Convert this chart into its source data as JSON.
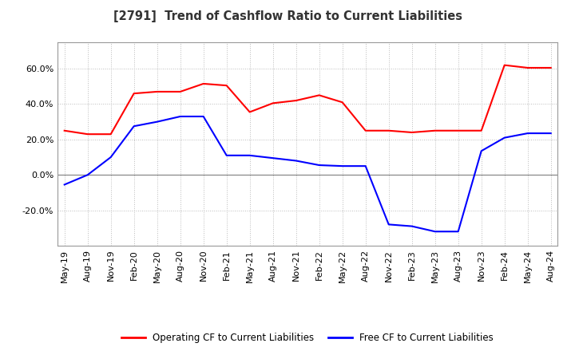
{
  "title": "[2791]  Trend of Cashflow Ratio to Current Liabilities",
  "x_labels": [
    "May-19",
    "Aug-19",
    "Nov-19",
    "Feb-20",
    "May-20",
    "Aug-20",
    "Nov-20",
    "Feb-21",
    "May-21",
    "Aug-21",
    "Nov-21",
    "Feb-22",
    "May-22",
    "Aug-22",
    "Nov-22",
    "Feb-23",
    "May-23",
    "Aug-23",
    "Nov-23",
    "Feb-24",
    "May-24",
    "Aug-24"
  ],
  "operating_cf": [
    25.0,
    23.0,
    23.0,
    46.0,
    47.0,
    47.0,
    51.5,
    50.5,
    35.5,
    40.5,
    42.0,
    45.0,
    41.0,
    25.0,
    25.0,
    24.0,
    25.0,
    25.0,
    25.0,
    62.0,
    60.5,
    60.5
  ],
  "free_cf": [
    -5.5,
    0.0,
    10.0,
    27.5,
    30.0,
    33.0,
    33.0,
    11.0,
    11.0,
    9.5,
    8.0,
    5.5,
    5.0,
    5.0,
    -28.0,
    -29.0,
    -32.0,
    -32.0,
    13.5,
    21.0,
    23.5,
    23.5
  ],
  "operating_color": "#FF0000",
  "free_color": "#0000FF",
  "ylim": [
    -40,
    75
  ],
  "yticks": [
    -20.0,
    0.0,
    20.0,
    40.0,
    60.0
  ],
  "background_color": "#FFFFFF",
  "grid_color": "#BBBBBB",
  "legend_labels": [
    "Operating CF to Current Liabilities",
    "Free CF to Current Liabilities"
  ]
}
